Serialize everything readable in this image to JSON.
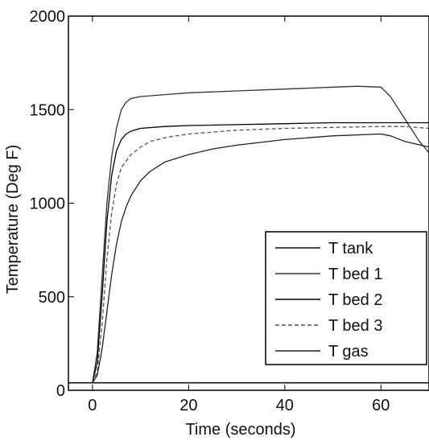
{
  "chart_data": {
    "type": "line",
    "title": "",
    "xlabel": "Time (seconds)",
    "ylabel": "Temperature (Deg F)",
    "xlim": [
      -5,
      70
    ],
    "ylim": [
      0,
      2000
    ],
    "xticks": [
      0,
      20,
      40,
      60
    ],
    "yticks": [
      0,
      500,
      1000,
      1500,
      2000
    ],
    "xtick_labels": [
      "0",
      "20",
      "40",
      "60"
    ],
    "ytick_labels": [
      "0",
      "500",
      "1000",
      "1500",
      "2000"
    ],
    "grid": false,
    "legend_position": "bottom-right",
    "series": [
      {
        "name": "T tank",
        "color": "#111111",
        "dash": "",
        "x": [
          -5,
          70
        ],
        "y": [
          40,
          40
        ]
      },
      {
        "name": "T bed 1",
        "color": "#333333",
        "dash": "",
        "x": [
          0,
          1,
          2,
          3,
          4,
          5,
          6,
          7,
          8,
          10,
          15,
          20,
          30,
          40,
          50,
          55,
          60,
          62,
          65,
          68,
          70
        ],
        "y": [
          40,
          200,
          600,
          1000,
          1250,
          1400,
          1500,
          1540,
          1560,
          1570,
          1580,
          1590,
          1600,
          1610,
          1620,
          1625,
          1620,
          1570,
          1450,
          1330,
          1270
        ]
      },
      {
        "name": "T bed 2",
        "color": "#000000",
        "dash": "",
        "x": [
          0,
          1,
          2,
          3,
          4,
          5,
          6,
          7,
          8,
          10,
          15,
          20,
          30,
          40,
          50,
          60,
          65,
          70
        ],
        "y": [
          40,
          150,
          500,
          900,
          1150,
          1280,
          1340,
          1370,
          1385,
          1400,
          1410,
          1415,
          1420,
          1425,
          1430,
          1430,
          1430,
          1430
        ]
      },
      {
        "name": "T bed 3",
        "color": "#555555",
        "dash": "5,3",
        "x": [
          0,
          1,
          2,
          3,
          4,
          5,
          6,
          8,
          10,
          12,
          15,
          20,
          30,
          40,
          50,
          60,
          65,
          70
        ],
        "y": [
          40,
          100,
          350,
          700,
          950,
          1100,
          1190,
          1260,
          1300,
          1330,
          1350,
          1370,
          1390,
          1400,
          1405,
          1410,
          1410,
          1400
        ]
      },
      {
        "name": "T gas",
        "color": "#222222",
        "dash": "",
        "x": [
          0,
          1,
          2,
          3,
          4,
          5,
          6,
          7,
          8,
          10,
          12,
          15,
          20,
          25,
          30,
          40,
          50,
          60,
          62,
          65,
          70
        ],
        "y": [
          40,
          80,
          220,
          420,
          620,
          780,
          900,
          980,
          1040,
          1120,
          1170,
          1220,
          1260,
          1290,
          1310,
          1340,
          1360,
          1370,
          1360,
          1330,
          1300
        ]
      }
    ]
  }
}
